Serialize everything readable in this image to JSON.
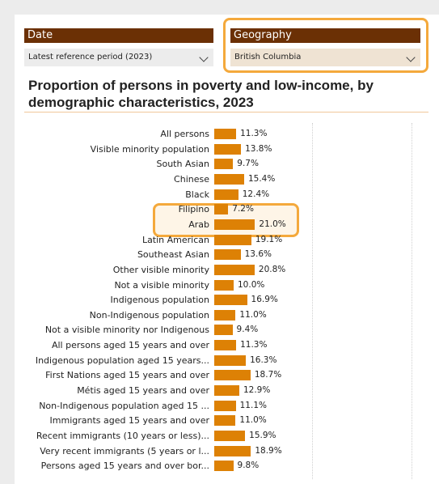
{
  "date_slicer": {
    "header": "Date",
    "value": "Latest reference period  (2023)"
  },
  "geo_slicer": {
    "header": "Geography",
    "value": "British Columbia"
  },
  "title": "Proportion of persons in poverty and low-income, by demographic characteristics, 2023",
  "colors": {
    "bar": "#dd8105",
    "header": "#6b3005",
    "highlight": "#f4a93c"
  },
  "chart_data": {
    "type": "bar",
    "orientation": "horizontal",
    "categories": [
      "All persons",
      "Visible minority population",
      "South Asian",
      "Chinese",
      "Black",
      "Filipino",
      "Arab",
      "Latin American",
      "Southeast Asian",
      "Other visible minority",
      "Not a visible minority",
      "Indigenous population",
      "Non-Indigenous population",
      "Not a visible minority nor Indigenous",
      "All persons aged 15 years and over",
      "Indigenous population aged 15 years...",
      "First Nations aged 15 years and over",
      "Métis aged 15 years and over",
      "Non-Indigenous population aged 15 ...",
      "Immigrants aged 15 years and over",
      "Recent immigrants (10 years or less)...",
      "Very recent immigrants (5 years or l...",
      "Persons aged 15 years and over bor..."
    ],
    "values": [
      11.3,
      13.8,
      9.7,
      15.4,
      12.4,
      7.2,
      21.0,
      19.1,
      13.6,
      20.8,
      10.0,
      16.9,
      11.0,
      9.4,
      11.3,
      16.3,
      18.7,
      12.9,
      11.1,
      11.0,
      15.9,
      18.9,
      9.8
    ],
    "labels": [
      "11.3%",
      "13.8%",
      "9.7%",
      "15.4%",
      "12.4%",
      "7.2%",
      "21.0%",
      "19.1%",
      "13.6%",
      "20.8%",
      "10.0%",
      "16.9%",
      "11.0%",
      "9.4%",
      "11.3%",
      "16.3%",
      "18.7%",
      "12.9%",
      "11.1%",
      "11.0%",
      "15.9%",
      "18.9%",
      "9.8%"
    ],
    "highlighted": [
      "Filipino",
      "Arab"
    ],
    "xlim": [
      0,
      100
    ]
  }
}
